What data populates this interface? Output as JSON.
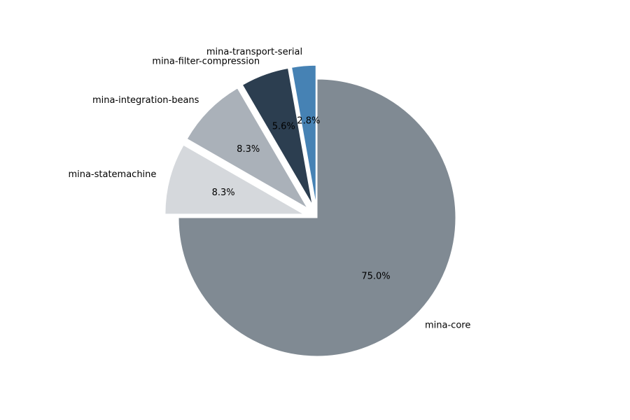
{
  "chart_data": {
    "type": "pie",
    "start_angle_deg": 90,
    "direction": "clockwise",
    "slices": [
      {
        "label": "mina-core",
        "value": 75.0,
        "pct_label": "75.0%",
        "color": "#808a93",
        "explode": 0
      },
      {
        "label": "mina-statemachine",
        "value": 8.3,
        "pct_label": "8.3%",
        "color": "#d5d8dc",
        "explode": 0.1
      },
      {
        "label": "mina-integration-beans",
        "value": 8.3,
        "pct_label": "8.3%",
        "color": "#aab1b9",
        "explode": 0.1
      },
      {
        "label": "mina-filter-compression",
        "value": 5.6,
        "pct_label": "5.6%",
        "color": "#2c3e50",
        "explode": 0.1
      },
      {
        "label": "mina-transport-serial",
        "value": 2.8,
        "pct_label": "2.8%",
        "color": "#4682b4",
        "explode": 0.1
      }
    ]
  }
}
